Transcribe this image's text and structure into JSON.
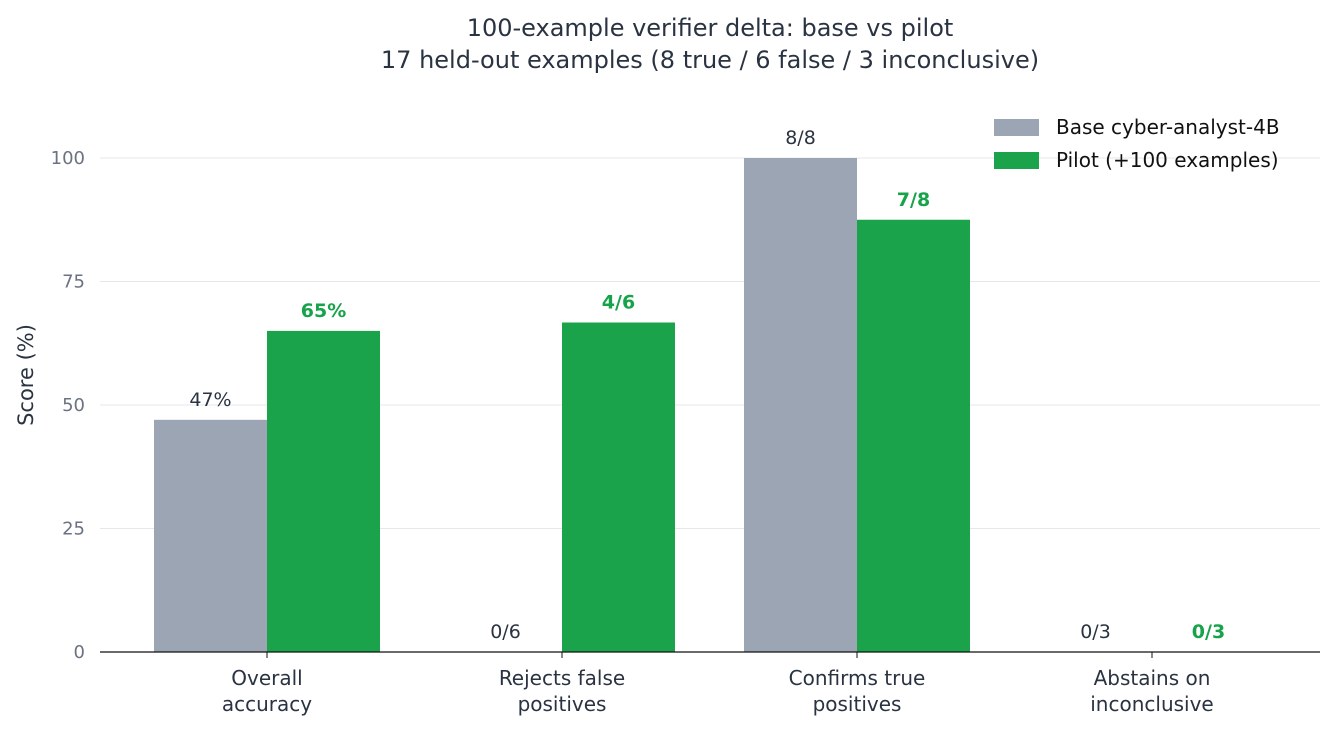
{
  "chart_data": {
    "type": "bar",
    "title": "100-example verifier delta: base vs pilot",
    "subtitle": "17 held-out examples (8 true / 6 false / 3 inconclusive)",
    "xlabel": "",
    "ylabel": "Score (%)",
    "ylim": [
      0,
      110
    ],
    "yticks": [
      "0",
      "25",
      "50",
      "75",
      "100"
    ],
    "grid": "horizontal",
    "legend_position": "top-right",
    "categories": [
      [
        "Overall",
        "accuracy"
      ],
      [
        "Rejects false",
        "positives"
      ],
      [
        "Confirms true",
        "positives"
      ],
      [
        "Abstains on",
        "inconclusive"
      ]
    ],
    "series": [
      {
        "name": "Base cyber-analyst-4B",
        "color": "#9ca5b4",
        "values": [
          47,
          0,
          100,
          0
        ],
        "labels": [
          "47%",
          "0/6",
          "8/8",
          "0/3"
        ]
      },
      {
        "name": "Pilot (+100 examples)",
        "color": "#1aa34a",
        "values": [
          65,
          66.7,
          87.5,
          0
        ],
        "labels": [
          "65%",
          "4/6",
          "7/8",
          "0/3"
        ]
      }
    ]
  }
}
